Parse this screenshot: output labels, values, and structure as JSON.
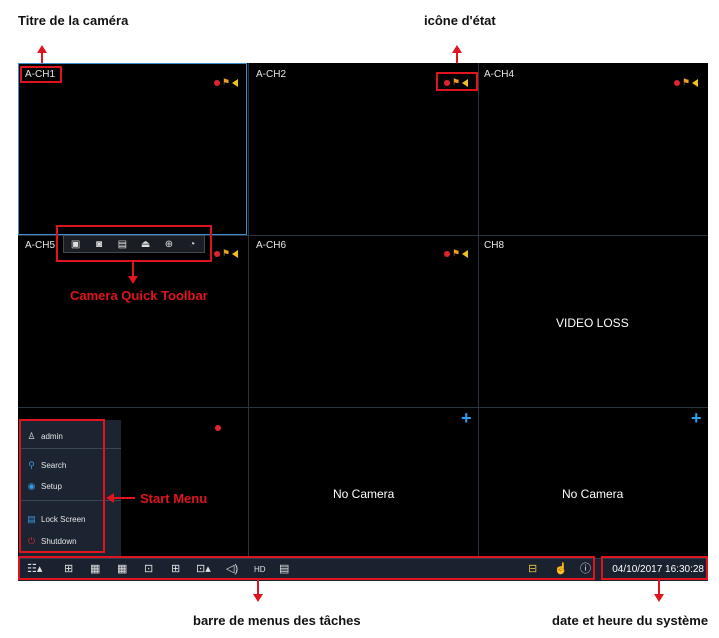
{
  "annotations": {
    "camera_title": "Titre de la caméra",
    "status_icon": "icône d'état",
    "quick_toolbar": "Camera Quick Toolbar",
    "start_menu": "Start Menu",
    "taskbar": "barre de menus des tâches",
    "datetime": "date et heure du système"
  },
  "cells": {
    "ch1": "A-CH1",
    "ch2": "A-CH2",
    "ch4": "A-CH4",
    "ch5": "A-CH5",
    "ch6": "A-CH6",
    "ch8": "CH8",
    "video_loss": "VIDEO LOSS",
    "no_camera": "No Camera",
    "add_symbol": "+"
  },
  "start_menu": {
    "user": "admin",
    "search": "Search",
    "setup": "Setup",
    "lock": "Lock Screen",
    "shutdown": "Shutdown"
  },
  "taskbar": {
    "datetime": "04/10/2017 16:30:28",
    "hd_label": "HD"
  },
  "colors": {
    "accent_red": "#e0141e",
    "selection_blue": "#3a8fd0",
    "add_blue": "#2aa0f0",
    "motion_orange": "#f0a020"
  },
  "icons": {
    "quickbar": [
      "record-icon",
      "snapshot-icon",
      "playback-icon",
      "ptz-icon",
      "zoom-icon",
      "color-icon"
    ],
    "taskbar": [
      "start-menu-icon",
      "layout-1-icon",
      "layout-4-icon",
      "layout-9-icon",
      "layout-16-icon",
      "layout-custom-icon",
      "pip-icon",
      "sequence-icon",
      "audio-icon",
      "stream-icon",
      "record-search-icon",
      "network-icon",
      "manual-alarm-icon",
      "info-icon"
    ]
  }
}
